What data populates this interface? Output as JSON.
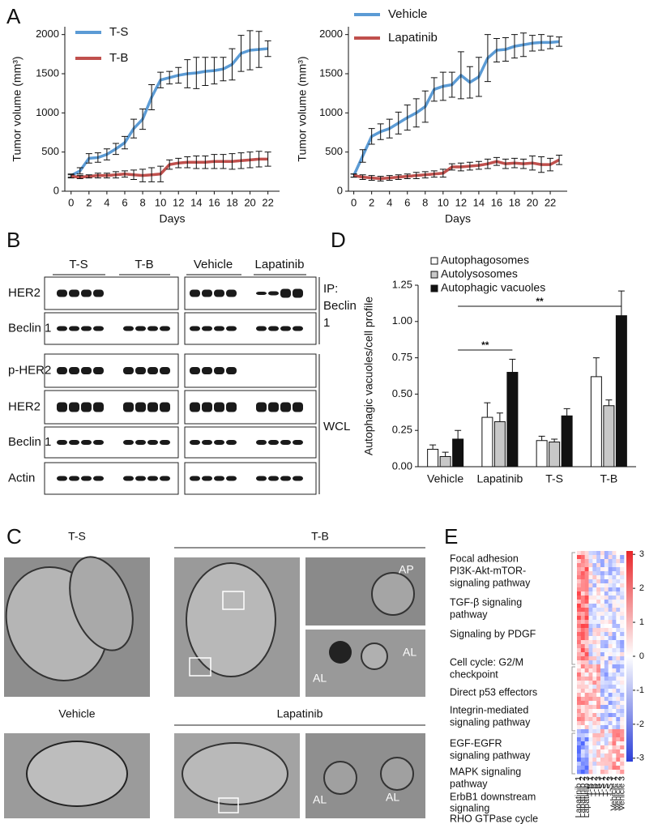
{
  "panel_labels": [
    "A",
    "B",
    "C",
    "D",
    "E"
  ],
  "chart_data": [
    {
      "type": "line",
      "x": [
        0,
        1,
        2,
        3,
        4,
        5,
        6,
        7,
        8,
        9,
        10,
        11,
        12,
        13,
        14,
        15,
        16,
        17,
        18,
        19,
        20,
        21,
        22
      ],
      "xlim": [
        -0.7,
        23.3
      ],
      "xticks": [
        0,
        2,
        4,
        6,
        8,
        10,
        12,
        14,
        16,
        18,
        20,
        22
      ],
      "ylim": [
        0,
        2100
      ],
      "yticks": [
        0,
        500,
        1000,
        1500,
        2000
      ],
      "x_label": "Days",
      "y_label": "Tumor volume (mm³)",
      "series": [
        {
          "name": "T-S",
          "color": "#5b9bd5",
          "values": [
            200,
            260,
            420,
            430,
            470,
            540,
            620,
            800,
            920,
            1200,
            1420,
            1450,
            1480,
            1500,
            1510,
            1530,
            1540,
            1560,
            1620,
            1760,
            1800,
            1810,
            1820
          ],
          "errors": [
            20,
            40,
            60,
            60,
            70,
            70,
            80,
            120,
            130,
            160,
            100,
            80,
            100,
            180,
            200,
            180,
            170,
            150,
            200,
            230,
            250,
            230,
            100
          ]
        },
        {
          "name": "T-B",
          "color": "#c0504d",
          "values": [
            190,
            180,
            190,
            200,
            200,
            210,
            220,
            210,
            200,
            210,
            220,
            340,
            360,
            370,
            370,
            370,
            380,
            380,
            380,
            390,
            400,
            410,
            410
          ],
          "errors": [
            20,
            20,
            20,
            30,
            30,
            40,
            40,
            60,
            80,
            90,
            100,
            60,
            60,
            70,
            80,
            80,
            90,
            90,
            100,
            100,
            100,
            100,
            90
          ]
        }
      ]
    },
    {
      "type": "line",
      "x": [
        0,
        1,
        2,
        3,
        4,
        5,
        6,
        7,
        8,
        9,
        10,
        11,
        12,
        13,
        14,
        15,
        16,
        17,
        18,
        19,
        20,
        21,
        22,
        23
      ],
      "xlim": [
        -0.6,
        23.9
      ],
      "xticks": [
        0,
        2,
        4,
        6,
        8,
        10,
        12,
        14,
        16,
        18,
        20,
        22
      ],
      "ylim": [
        0,
        2100
      ],
      "yticks": [
        0,
        500,
        1000,
        1500,
        2000
      ],
      "x_label": "Days",
      "y_label": "Tumor volume (mm³)",
      "series": [
        {
          "name": "Vehicle",
          "color": "#5b9bd5",
          "values": [
            200,
            450,
            700,
            760,
            800,
            870,
            940,
            1000,
            1080,
            1300,
            1340,
            1360,
            1480,
            1390,
            1460,
            1700,
            1800,
            1810,
            1850,
            1870,
            1890,
            1900,
            1900,
            1910
          ],
          "errors": [
            20,
            80,
            100,
            100,
            120,
            140,
            160,
            180,
            200,
            150,
            180,
            160,
            300,
            200,
            250,
            300,
            150,
            150,
            150,
            150,
            100,
            100,
            80,
            60
          ]
        },
        {
          "name": "Lapatinib",
          "color": "#c0504d",
          "values": [
            200,
            180,
            170,
            160,
            170,
            180,
            190,
            200,
            210,
            220,
            230,
            310,
            310,
            320,
            330,
            350,
            380,
            350,
            360,
            350,
            360,
            340,
            340,
            400
          ],
          "errors": [
            20,
            30,
            30,
            30,
            30,
            30,
            30,
            40,
            40,
            40,
            50,
            40,
            50,
            50,
            50,
            60,
            50,
            60,
            60,
            60,
            90,
            100,
            80,
            60
          ]
        }
      ]
    },
    {
      "type": "bar",
      "categories": [
        "Vehicle",
        "Lapatinib",
        "T-S",
        "T-B"
      ],
      "ylim": [
        0,
        1.25
      ],
      "yticks": [
        {
          "value": 0,
          "label": "0.00"
        },
        {
          "value": 0.25,
          "label": "0.25"
        },
        {
          "value": 0.5,
          "label": "0.50"
        },
        {
          "value": 0.75,
          "label": "0.75"
        },
        {
          "value": 1,
          "label": "1.00"
        },
        {
          "value": 1.25,
          "label": "1.25"
        }
      ],
      "y_label": "Autophagic vacuoles/cell profile",
      "series": [
        {
          "name": "Autophagosomes",
          "color": "#ffffff",
          "values": [
            0.12,
            0.34,
            0.18,
            0.62
          ],
          "errors": [
            0.03,
            0.1,
            0.03,
            0.13
          ]
        },
        {
          "name": "Autolysosomes",
          "color": "#c8c8c8",
          "values": [
            0.07,
            0.31,
            0.17,
            0.42
          ],
          "errors": [
            0.03,
            0.06,
            0.02,
            0.04
          ]
        },
        {
          "name": "Autophagic vacuoles",
          "color": "#111111",
          "values": [
            0.19,
            0.65,
            0.35,
            1.04
          ],
          "errors": [
            0.06,
            0.09,
            0.05,
            0.17
          ]
        }
      ],
      "annotations": [
        "**",
        "**"
      ]
    }
  ],
  "blots": {
    "groups": [
      "T-S",
      "T-B",
      "Vehicle",
      "Lapatinib"
    ],
    "rows": [
      "HER2",
      "Beclin 1",
      "p-HER2",
      "HER2",
      "Beclin 1",
      "Actin"
    ],
    "ip_label": [
      "IP:",
      "Beclin",
      "1"
    ],
    "wcl_label": "WCL"
  },
  "em": {
    "groups": [
      "T-S",
      "T-B",
      "Vehicle",
      "Lapatinib"
    ],
    "insets": [
      "AP",
      "AL",
      "AL",
      "AL",
      "AL"
    ]
  },
  "heatmap": {
    "pathways": [
      [
        "Focal adhesion"
      ],
      [
        "PI3K-Akt-mTOR-",
        "signaling pathway"
      ],
      [
        "TGF-β signaling",
        "pathway"
      ],
      [
        "Signaling by PDGF"
      ],
      [
        "Cell cycle: G2/M",
        "checkpoint"
      ],
      [
        "Direct p53 effectors"
      ],
      [
        "Integrin-mediated",
        "signaling pathway"
      ],
      [
        "EGF-EGFR",
        "signaling pathway"
      ],
      [
        "MAPK signaling",
        "pathway"
      ],
      [
        "ErbB1 downstream",
        "signaling"
      ],
      [
        "RHO GTPase cycle"
      ]
    ],
    "columns": [
      "Lapatinib 1",
      "Lapatinib 2",
      "Lapatinib 3",
      "T-B 1",
      "T-B 2",
      "T-B 3",
      "T-S 1",
      "T-S 2",
      "T-S 3",
      "Vehicle 1",
      "Vehicle 2",
      "Vehicle 3"
    ],
    "colorbar_ticks": [
      3,
      2,
      1,
      0,
      -1,
      -2,
      -3
    ],
    "colorbar_lim": [
      -3.1,
      3.1
    ]
  }
}
